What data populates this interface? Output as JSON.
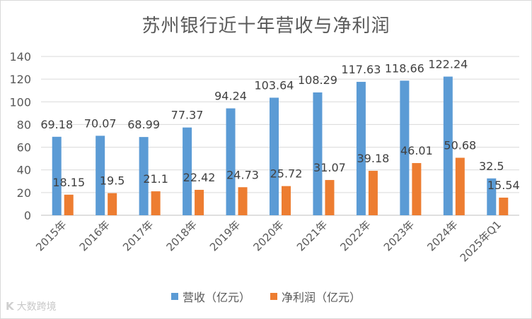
{
  "chart_data": {
    "type": "bar",
    "title": "苏州银行近十年营收与净利润",
    "categories": [
      "2015年",
      "2016年",
      "2017年",
      "2018年",
      "2019年",
      "2020年",
      "2021年",
      "2022年",
      "2023年",
      "2024年",
      "2025年Q1"
    ],
    "series": [
      {
        "name": "营收（亿元）",
        "color": "#5b9bd5",
        "values": [
          69.18,
          70.07,
          68.99,
          77.37,
          94.24,
          103.64,
          108.29,
          117.63,
          118.66,
          122.24,
          32.5
        ]
      },
      {
        "name": "净利润（亿元）",
        "color": "#ed7d31",
        "values": [
          18.15,
          19.5,
          21.1,
          22.42,
          24.73,
          25.72,
          31.07,
          39.18,
          46.01,
          50.68,
          15.54
        ]
      }
    ],
    "ylim": [
      0,
      140
    ],
    "yticks": [
      0,
      20,
      40,
      60,
      80,
      100,
      120,
      140
    ],
    "grid": true,
    "legend_position": "bottom"
  },
  "watermark": {
    "text": "大数跨境",
    "logo_icon": "k-logo-icon",
    "logo_text": "K"
  }
}
